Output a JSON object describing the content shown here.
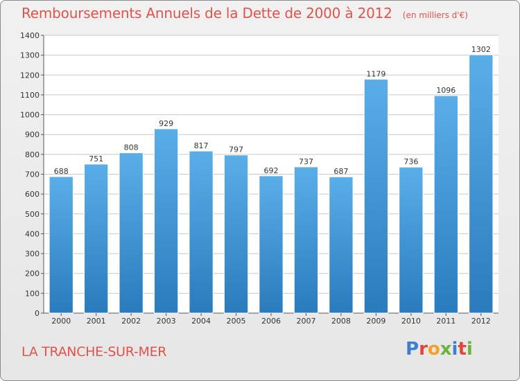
{
  "title": "Remboursements Annuels de la Dette de 2000 à 2012",
  "subtitle": "(en milliers d'€)",
  "location": "LA TRANCHE-SUR-MER",
  "logo": {
    "text": "Proxiti",
    "letters": [
      {
        "ch": "P",
        "color": "#3a7fd0"
      },
      {
        "ch": "r",
        "color": "#e0443a"
      },
      {
        "ch": "o",
        "color": "#f2a127"
      },
      {
        "ch": "x",
        "color": "#6cb33e"
      },
      {
        "ch": "i",
        "color": "#3a7fd0"
      },
      {
        "ch": "t",
        "color": "#e0443a"
      },
      {
        "ch": "i",
        "color": "#6cb33e"
      }
    ]
  },
  "colors": {
    "title": "#e0524a",
    "bar_top": "#5aaee8",
    "bar_bottom": "#2a7bbd",
    "grid": "#c8c8c8",
    "axis": "#555555"
  },
  "chart_data": {
    "type": "bar",
    "categories": [
      "2000",
      "2001",
      "2002",
      "2003",
      "2004",
      "2005",
      "2006",
      "2007",
      "2008",
      "2009",
      "2010",
      "2011",
      "2012"
    ],
    "values": [
      688,
      751,
      808,
      929,
      817,
      797,
      692,
      737,
      687,
      1179,
      736,
      1096,
      1302
    ],
    "ylim": [
      0,
      1400
    ],
    "yticks": [
      0,
      100,
      200,
      300,
      400,
      500,
      600,
      700,
      800,
      900,
      1000,
      1100,
      1200,
      1300,
      1400
    ],
    "grid": true,
    "data_labels": true
  }
}
